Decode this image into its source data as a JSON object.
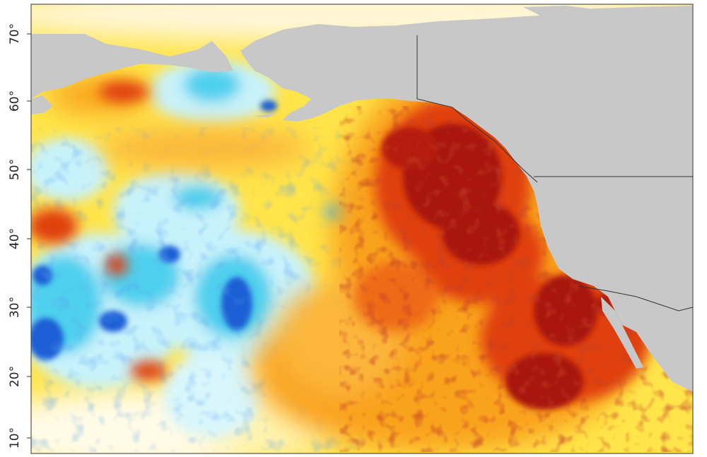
{
  "map": {
    "type": "sea-surface-temperature-anomaly",
    "region": "North Pacific",
    "lat_axis": {
      "labels": [
        "70°",
        "60°",
        "50°",
        "40°",
        "30°",
        "20°",
        "10°"
      ],
      "values": [
        70,
        60,
        50,
        40,
        30,
        20,
        10
      ]
    },
    "colors": {
      "land": "#c8c8c8",
      "neutral": "#fff6c2",
      "warm_light": "#ffe44a",
      "warm_mid": "#f9a21c",
      "warm_strong": "#e0400f",
      "warm_extreme": "#a8140a",
      "cool_light": "#c7f2fb",
      "cool_mid": "#4fd0ee",
      "cool_strong": "#1a5fd6",
      "cool_extreme": "#0b2aa6",
      "border": "#333333"
    }
  }
}
